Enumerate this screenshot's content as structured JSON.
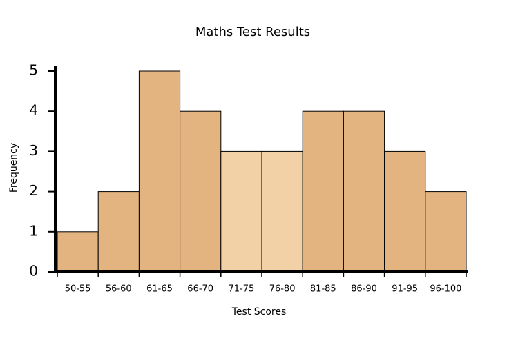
{
  "chart_data": {
    "type": "bar",
    "title": "Maths Test Results",
    "x_label": "Test Scores",
    "y_label": "Frequency",
    "categories": [
      "50-55",
      "56-60",
      "61-65",
      "66-70",
      "71-75",
      "76-80",
      "81-85",
      "86-90",
      "91-95",
      "96-100"
    ],
    "values": [
      1,
      2,
      5,
      4,
      3,
      3,
      4,
      4,
      3,
      2
    ],
    "colors": [
      "#e3b47f",
      "#e3b47f",
      "#e3b47f",
      "#e3b47f",
      "#f2d1a6",
      "#f2d1a6",
      "#e3b47f",
      "#e3b47f",
      "#e3b47f",
      "#e3b47f"
    ],
    "ylim": [
      0,
      5
    ],
    "yticks": [
      0,
      1,
      2,
      3,
      4,
      5
    ],
    "grid": false
  }
}
